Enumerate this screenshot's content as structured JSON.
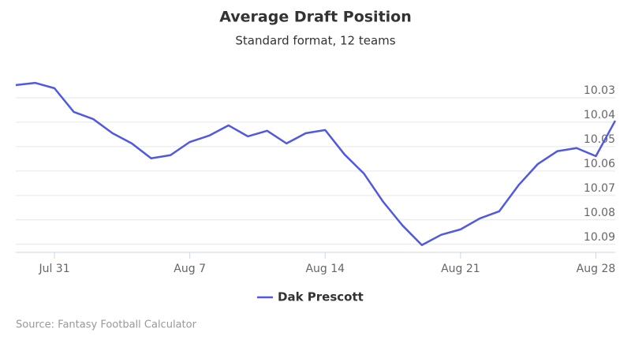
{
  "chart_data": {
    "type": "line",
    "title": "Average Draft Position",
    "subtitle": "Standard format, 12 teams",
    "categories": [
      null,
      null,
      "Jul 31",
      null,
      null,
      null,
      null,
      null,
      null,
      "Aug 7",
      null,
      null,
      null,
      null,
      null,
      null,
      "Aug 14",
      null,
      null,
      null,
      null,
      null,
      null,
      "Aug 21",
      null,
      null,
      null,
      null,
      null,
      null,
      "Aug 28",
      null
    ],
    "series": [
      {
        "name": "Dak Prescott",
        "color": "#5059e0",
        "values": [
          10.0248,
          10.0239,
          10.0261,
          10.0358,
          10.0387,
          10.0445,
          10.0487,
          10.0548,
          10.0535,
          10.0481,
          10.0455,
          10.0413,
          10.0458,
          10.0435,
          10.0487,
          10.0445,
          10.0432,
          10.0532,
          10.061,
          10.0726,
          10.0823,
          10.0903,
          10.0861,
          10.0839,
          10.0794,
          10.0765,
          10.0658,
          10.0571,
          10.0519,
          10.0506,
          10.0539,
          10.0394
        ]
      }
    ],
    "ylim": [
      10.02,
      10.0933
    ],
    "y_reversed": true,
    "y_axis_side": "right",
    "yticks": [
      10.03,
      10.04,
      10.05,
      10.06,
      10.07,
      10.08,
      10.09
    ],
    "grid": true,
    "legend": "bottom",
    "source": "Source: Fantasy Football Calculator"
  }
}
